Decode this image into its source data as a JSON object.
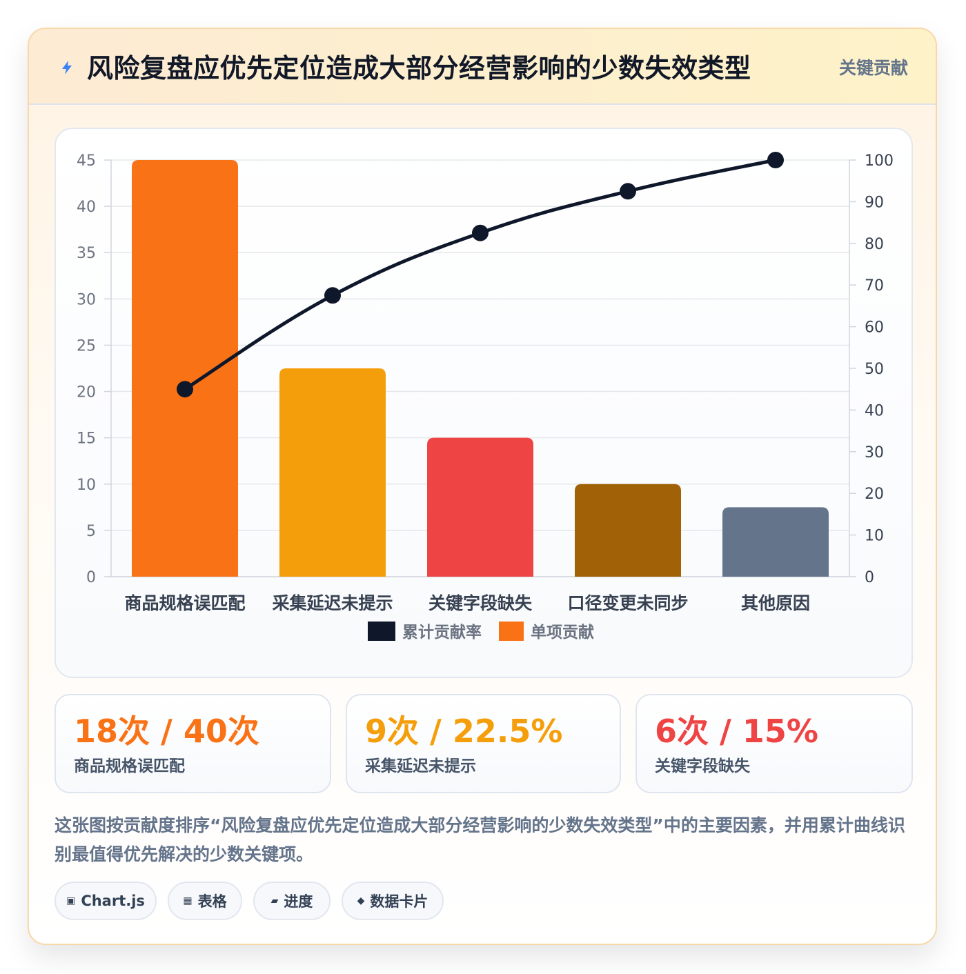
{
  "header": {
    "title": "风险复盘应优先定位造成大部分经营影响的少数失效类型",
    "tag": "关键贡献",
    "icon": "lightning-icon"
  },
  "chart_data": {
    "type": "bar",
    "categories": [
      "商品规格误匹配",
      "采集延迟未提示",
      "关键字段缺失",
      "口径变更未同步",
      "其他原因"
    ],
    "series": [
      {
        "name": "单项贡献",
        "type": "bar",
        "axis": "left",
        "values": [
          45,
          22.5,
          15,
          10,
          7.5
        ],
        "colors": [
          "#f97316",
          "#f59e0b",
          "#ef4444",
          "#a16207",
          "#64748b"
        ]
      },
      {
        "name": "累计贡献率",
        "type": "line",
        "axis": "right",
        "values": [
          45,
          67.5,
          82.5,
          92.5,
          100
        ],
        "color": "#0f172a"
      }
    ],
    "y_left": {
      "lim": [
        0,
        45
      ],
      "ticks": [
        "0",
        "5",
        "10",
        "15",
        "20",
        "25",
        "30",
        "35",
        "40",
        "45"
      ]
    },
    "y_right": {
      "lim": [
        0,
        100
      ],
      "ticks": [
        "0",
        "10",
        "20",
        "30",
        "40",
        "50",
        "60",
        "70",
        "80",
        "90",
        "100"
      ]
    },
    "legend": [
      "累计贡献率",
      "单项贡献"
    ],
    "legend_position": "bottom",
    "grid": true
  },
  "stats": [
    {
      "value": "18次 / 40次",
      "label": "商品规格误匹配",
      "color": "#f97316"
    },
    {
      "value": "9次 / 22.5%",
      "label": "采集延迟未提示",
      "color": "#f59e0b"
    },
    {
      "value": "6次 / 15%",
      "label": "关键字段缺失",
      "color": "#ef4444"
    }
  ],
  "description": "这张图按贡献度排序“风险复盘应优先定位造成大部分经营影响的少数失效类型”中的主要因素，并用累计曲线识别最值得优先解决的少数关键项。",
  "chips": [
    {
      "icon": "▣",
      "label": "Chart.js",
      "icon_name": "chart-icon"
    },
    {
      "icon": "▦",
      "label": "表格",
      "icon_name": "table-icon"
    },
    {
      "icon": "▰",
      "label": "进度",
      "icon_name": "progress-icon"
    },
    {
      "icon": "◆",
      "label": "数据卡片",
      "icon_name": "card-icon"
    }
  ]
}
